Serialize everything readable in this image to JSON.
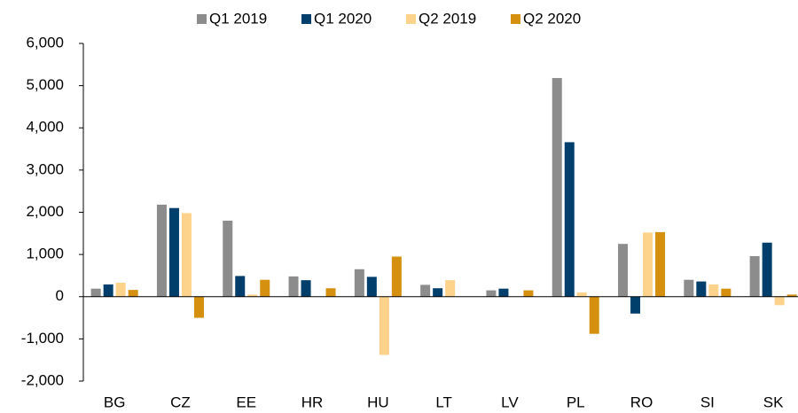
{
  "chart_data": {
    "type": "bar",
    "categories": [
      "BG",
      "CZ",
      "EE",
      "HR",
      "HU",
      "LT",
      "LV",
      "PL",
      "RO",
      "SI",
      "SK"
    ],
    "series": [
      {
        "name": "Q1 2019",
        "color": "#8c8c8c",
        "values": [
          190,
          2180,
          1800,
          480,
          650,
          280,
          150,
          5180,
          1250,
          400,
          960
        ]
      },
      {
        "name": "Q1 2020",
        "color": "#003f6b",
        "values": [
          290,
          2100,
          490,
          390,
          470,
          200,
          190,
          3660,
          -400,
          360,
          1280
        ]
      },
      {
        "name": "Q2 2019",
        "color": "#fdd28a",
        "values": [
          330,
          1980,
          50,
          0,
          -1380,
          390,
          0,
          100,
          1520,
          290,
          -200
        ]
      },
      {
        "name": "Q2 2020",
        "color": "#d4900e",
        "values": [
          160,
          -500,
          400,
          200,
          950,
          0,
          150,
          -880,
          1530,
          190,
          50
        ]
      }
    ],
    "ylim": [
      -2000,
      6000
    ],
    "yticks": [
      {
        "value": -2000,
        "label": "-2,000"
      },
      {
        "value": -1000,
        "label": "-1,000"
      },
      0,
      {
        "value": 1000,
        "label": "1,000"
      },
      {
        "value": 2000,
        "label": "2,000"
      },
      {
        "value": 3000,
        "label": "3,000"
      },
      {
        "value": 4000,
        "label": "4,000"
      },
      {
        "value": 5000,
        "label": "5,000"
      },
      {
        "value": 6000,
        "label": "6,000"
      }
    ],
    "grid": false,
    "legend": "top"
  }
}
